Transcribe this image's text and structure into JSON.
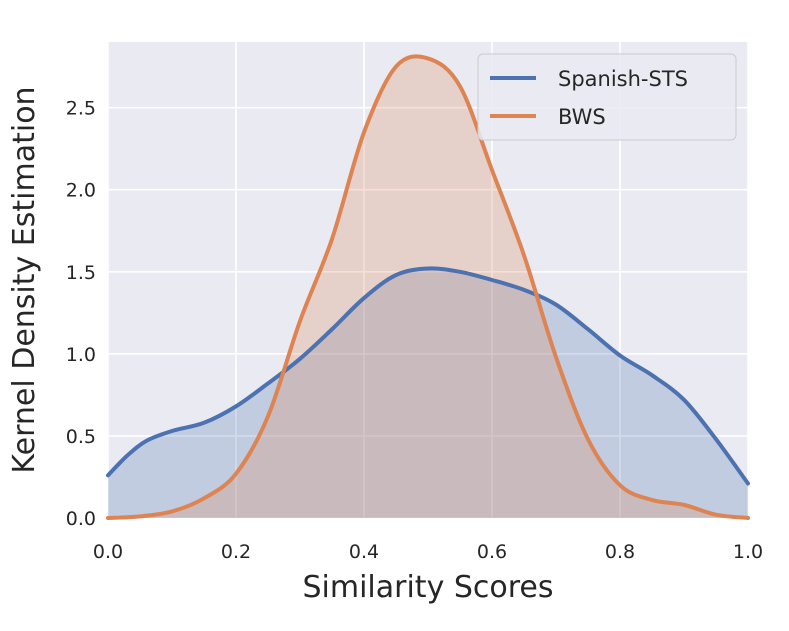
{
  "chart_data": {
    "type": "area",
    "title": "",
    "xlabel": "Similarity Scores",
    "ylabel": "Kernel Density Estimation",
    "xlim": [
      0.0,
      1.0
    ],
    "ylim": [
      0.0,
      2.9
    ],
    "xticks": [
      0.0,
      0.2,
      0.4,
      0.6,
      0.8,
      1.0
    ],
    "xtick_labels": [
      "0.0",
      "0.2",
      "0.4",
      "0.6",
      "0.8",
      "1.0"
    ],
    "yticks": [
      0.0,
      0.5,
      1.0,
      1.5,
      2.0,
      2.5
    ],
    "ytick_labels": [
      "0.0",
      "0.5",
      "1.0",
      "1.5",
      "2.0",
      "2.5"
    ],
    "grid": true,
    "legend_position": "top-right",
    "background_color": "#eaeaf2",
    "series": [
      {
        "name": "Spanish-STS",
        "color": "#4c72b0",
        "fill": true,
        "points": [
          [
            0.0,
            0.26
          ],
          [
            0.03,
            0.38
          ],
          [
            0.06,
            0.47
          ],
          [
            0.1,
            0.53
          ],
          [
            0.15,
            0.58
          ],
          [
            0.2,
            0.68
          ],
          [
            0.25,
            0.82
          ],
          [
            0.3,
            0.97
          ],
          [
            0.35,
            1.15
          ],
          [
            0.4,
            1.34
          ],
          [
            0.45,
            1.48
          ],
          [
            0.5,
            1.52
          ],
          [
            0.55,
            1.5
          ],
          [
            0.6,
            1.45
          ],
          [
            0.65,
            1.39
          ],
          [
            0.7,
            1.3
          ],
          [
            0.75,
            1.15
          ],
          [
            0.8,
            0.99
          ],
          [
            0.85,
            0.87
          ],
          [
            0.9,
            0.72
          ],
          [
            0.95,
            0.48
          ],
          [
            1.0,
            0.21
          ]
        ]
      },
      {
        "name": "BWS",
        "color": "#dd8452",
        "fill": true,
        "points": [
          [
            0.0,
            0.0
          ],
          [
            0.05,
            0.01
          ],
          [
            0.1,
            0.04
          ],
          [
            0.15,
            0.12
          ],
          [
            0.2,
            0.27
          ],
          [
            0.25,
            0.62
          ],
          [
            0.3,
            1.2
          ],
          [
            0.35,
            1.7
          ],
          [
            0.4,
            2.35
          ],
          [
            0.45,
            2.75
          ],
          [
            0.5,
            2.8
          ],
          [
            0.55,
            2.63
          ],
          [
            0.6,
            2.12
          ],
          [
            0.65,
            1.6
          ],
          [
            0.7,
            0.98
          ],
          [
            0.75,
            0.48
          ],
          [
            0.8,
            0.2
          ],
          [
            0.85,
            0.11
          ],
          [
            0.9,
            0.08
          ],
          [
            0.95,
            0.02
          ],
          [
            1.0,
            0.0
          ]
        ]
      }
    ]
  }
}
